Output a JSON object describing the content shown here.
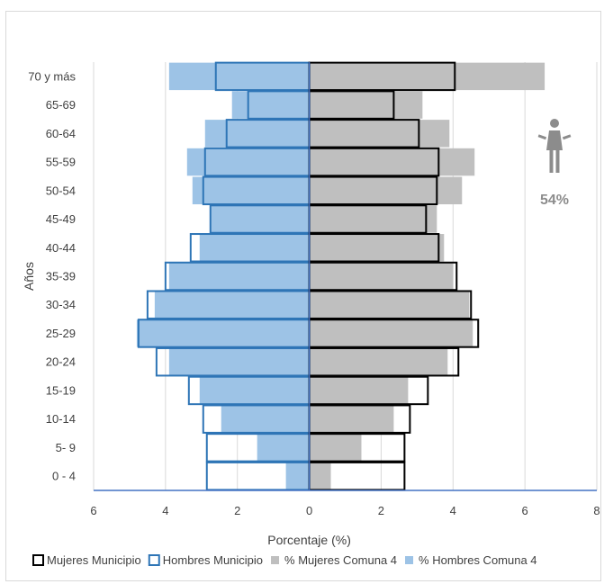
{
  "chart_data": {
    "type": "bar",
    "orientation": "horizontal",
    "subtype": "population-pyramid",
    "xlabel": "Porcentaje (%)",
    "ylabel": "Años",
    "xlim": [
      -6,
      8
    ],
    "xticks": [
      -6,
      -4,
      -2,
      0,
      2,
      4,
      6,
      8
    ],
    "xtick_labels": [
      "6",
      "4",
      "2",
      "0",
      "2",
      "4",
      "6",
      "8"
    ],
    "grid": "vertical",
    "legend": "bottom",
    "categories": [
      "0 - 4",
      "5- 9",
      "10-14",
      "15-19",
      "20-24",
      "25-29",
      "30-34",
      "35-39",
      "40-44",
      "45-49",
      "50-54",
      "55-59",
      "60-64",
      "65-69",
      "70 y más"
    ],
    "series": [
      {
        "name": "% Hombres Comuna 4",
        "side": "left",
        "style": "fill",
        "color": "#9dc3e6",
        "values": [
          0.65,
          1.45,
          2.45,
          3.05,
          3.9,
          4.8,
          4.3,
          3.9,
          3.05,
          2.75,
          3.25,
          3.4,
          2.9,
          2.15,
          3.9
        ]
      },
      {
        "name": "% Mujeres Comuna 4",
        "side": "right",
        "style": "fill",
        "color": "#bfbfbf",
        "values": [
          0.6,
          1.45,
          2.35,
          2.75,
          3.85,
          4.55,
          4.45,
          4.0,
          3.75,
          3.55,
          4.25,
          4.6,
          3.9,
          3.15,
          6.55
        ]
      },
      {
        "name": "Hombres Municipio",
        "side": "left",
        "style": "outline",
        "color": "#2e75b6",
        "values": [
          2.85,
          2.85,
          2.95,
          3.35,
          4.25,
          4.75,
          4.5,
          4.0,
          3.3,
          2.75,
          2.95,
          2.9,
          2.3,
          1.7,
          2.6
        ]
      },
      {
        "name": "Mujeres Municipio",
        "side": "right",
        "style": "outline",
        "color": "#000000",
        "values": [
          2.65,
          2.65,
          2.8,
          3.3,
          4.15,
          4.7,
          4.5,
          4.1,
          3.6,
          3.25,
          3.55,
          3.6,
          3.05,
          2.35,
          4.05
        ]
      }
    ],
    "legend_order": [
      "Mujeres Municipio",
      "Hombres Municipio",
      "% Mujeres Comuna 4",
      "% Hombres Comuna 4"
    ],
    "annotation": {
      "icon": "woman-icon",
      "text": "54%",
      "color": "#8c8c8c"
    }
  }
}
